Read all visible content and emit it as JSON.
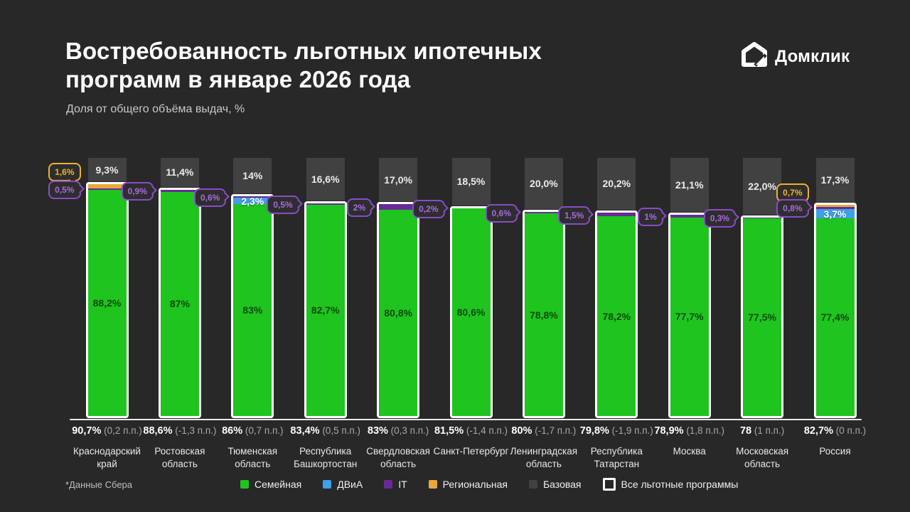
{
  "header": {
    "title_line1": "Востребованность льготных ипотечных",
    "title_line2": "программ в январе 2026 года",
    "subtitle": "Доля от общего объёма выдач, %",
    "logo_text": "Домклик"
  },
  "footnote": "*Данные Сбера",
  "colors": {
    "family": "#1fc41f",
    "dvia": "#3f9fe8",
    "it": "#682b96",
    "regional": "#e5a93c",
    "base": "#414141",
    "outline": "#ffffff",
    "background": "#282828",
    "callout_purple": "#8a4bc8",
    "callout_yellow": "#eeb02e"
  },
  "legend": [
    {
      "key": "family",
      "label": "Семейная"
    },
    {
      "key": "dvia",
      "label": "ДВиА"
    },
    {
      "key": "it",
      "label": "IT"
    },
    {
      "key": "regional",
      "label": "Региональная"
    },
    {
      "key": "base",
      "label": "Базовая"
    },
    {
      "key": "outline",
      "label": "Все льготные программы"
    }
  ],
  "chart_data": {
    "type": "bar",
    "stacked": true,
    "title": "Востребованность льготных ипотечных программ в январе 2026 года",
    "ylabel": "Доля от общего объёма выдач, %",
    "ylim": [
      0,
      100
    ],
    "grid": false,
    "legend_position": "bottom",
    "series_order_top_to_bottom": [
      "base",
      "regional",
      "it",
      "dvia",
      "family"
    ],
    "series_names": {
      "family": "Семейная",
      "dvia": "ДВиА",
      "it": "IT",
      "regional": "Региональная",
      "base": "Базовая",
      "total_outline": "Все льготные программы"
    },
    "bars": [
      {
        "region": "Краснодарский край",
        "total": 90.7,
        "total_label": "90,7%",
        "change_label": "(0,2 п.п.)",
        "base": 9.3,
        "base_label": "9,3%",
        "regional": 1.6,
        "regional_callout": "1,6%",
        "it": 0.5,
        "it_callout": "0,5%",
        "dvia": 0,
        "dvia_label": "",
        "family": 88.2,
        "family_label": "88,2%"
      },
      {
        "region": "Ростовская область",
        "total": 88.6,
        "total_label": "88,6%",
        "change_label": "(-1,3 п.п.)",
        "base": 11.4,
        "base_label": "11,4%",
        "regional": 0,
        "regional_callout": "",
        "it": 0.9,
        "it_callout": "0,9%",
        "dvia": 0,
        "dvia_label": "",
        "family": 87,
        "family_label": "87%"
      },
      {
        "region": "Тюменская область",
        "total": 86,
        "total_label": "86%",
        "change_label": "(0,7 п.п.)",
        "base": 14,
        "base_label": "14%",
        "regional": 0,
        "regional_callout": "",
        "it": 0.6,
        "it_callout": "0,6%",
        "dvia": 2.3,
        "dvia_label": "2,3%",
        "family": 83,
        "family_label": "83%"
      },
      {
        "region": "Республика Башкортостан",
        "total": 83.4,
        "total_label": "83,4%",
        "change_label": "(0,5 п.п.)",
        "base": 16.6,
        "base_label": "16,6%",
        "regional": 0,
        "regional_callout": "",
        "it": 0.5,
        "it_callout": "0,5%",
        "dvia": 0,
        "dvia_label": "",
        "family": 82.7,
        "family_label": "82,7%"
      },
      {
        "region": "Свердловская область",
        "total": 83,
        "total_label": "83%",
        "change_label": "(0,3 п.п.)",
        "base": 17,
        "base_label": "17,0%",
        "regional": 0,
        "regional_callout": "",
        "it": 2,
        "it_callout": "2%",
        "dvia": 0,
        "dvia_label": "",
        "family": 80.8,
        "family_label": "80,8%"
      },
      {
        "region": "Санкт-Петербург",
        "total": 81.5,
        "total_label": "81,5%",
        "change_label": "(-1,4 п.п.)",
        "base": 18.5,
        "base_label": "18,5%",
        "regional": 0,
        "regional_callout": "",
        "it": 0.2,
        "it_callout": "0,2%",
        "dvia": 0,
        "dvia_label": "",
        "family": 80.6,
        "family_label": "80,6%"
      },
      {
        "region": "Ленинградская область",
        "total": 80,
        "total_label": "80%",
        "change_label": "(-1,7 п.п.)",
        "base": 20,
        "base_label": "20,0%",
        "regional": 0,
        "regional_callout": "",
        "it": 0.6,
        "it_callout": "0,6%",
        "dvia": 0,
        "dvia_label": "",
        "family": 78.8,
        "family_label": "78,8%"
      },
      {
        "region": "Республика Татарстан",
        "total": 79.8,
        "total_label": "79,8%",
        "change_label": "(-1,9 п.п.)",
        "base": 20.2,
        "base_label": "20,2%",
        "regional": 0,
        "regional_callout": "",
        "it": 1.5,
        "it_callout": "1,5%",
        "dvia": 0,
        "dvia_label": "",
        "family": 78.2,
        "family_label": "78,2%"
      },
      {
        "region": "Москва",
        "total": 78.9,
        "total_label": "78,9%",
        "change_label": "(1,8 п.п.)",
        "base": 21.1,
        "base_label": "21,1%",
        "regional": 0,
        "regional_callout": "",
        "it": 1,
        "it_callout": "1%",
        "dvia": 0,
        "dvia_label": "",
        "family": 77.7,
        "family_label": "77,7%"
      },
      {
        "region": "Московская область",
        "total": 78,
        "total_label": "78",
        "change_label": "(1 п.п.)",
        "base": 22,
        "base_label": "22,0%",
        "regional": 0,
        "regional_callout": "",
        "it": 0.3,
        "it_callout": "0,3%",
        "dvia": 0,
        "dvia_label": "",
        "family": 77.5,
        "family_label": "77,5%"
      },
      {
        "region": "Россия",
        "total": 82.7,
        "total_label": "82,7%",
        "change_label": "(0 п.п.)",
        "base": 17.3,
        "base_label": "17,3%",
        "regional": 0.7,
        "regional_callout": "0,7%",
        "it": 0.8,
        "it_callout": "0,8%",
        "dvia": 3.7,
        "dvia_label": "3,7%",
        "family": 77.4,
        "family_label": "77,4%"
      }
    ]
  }
}
